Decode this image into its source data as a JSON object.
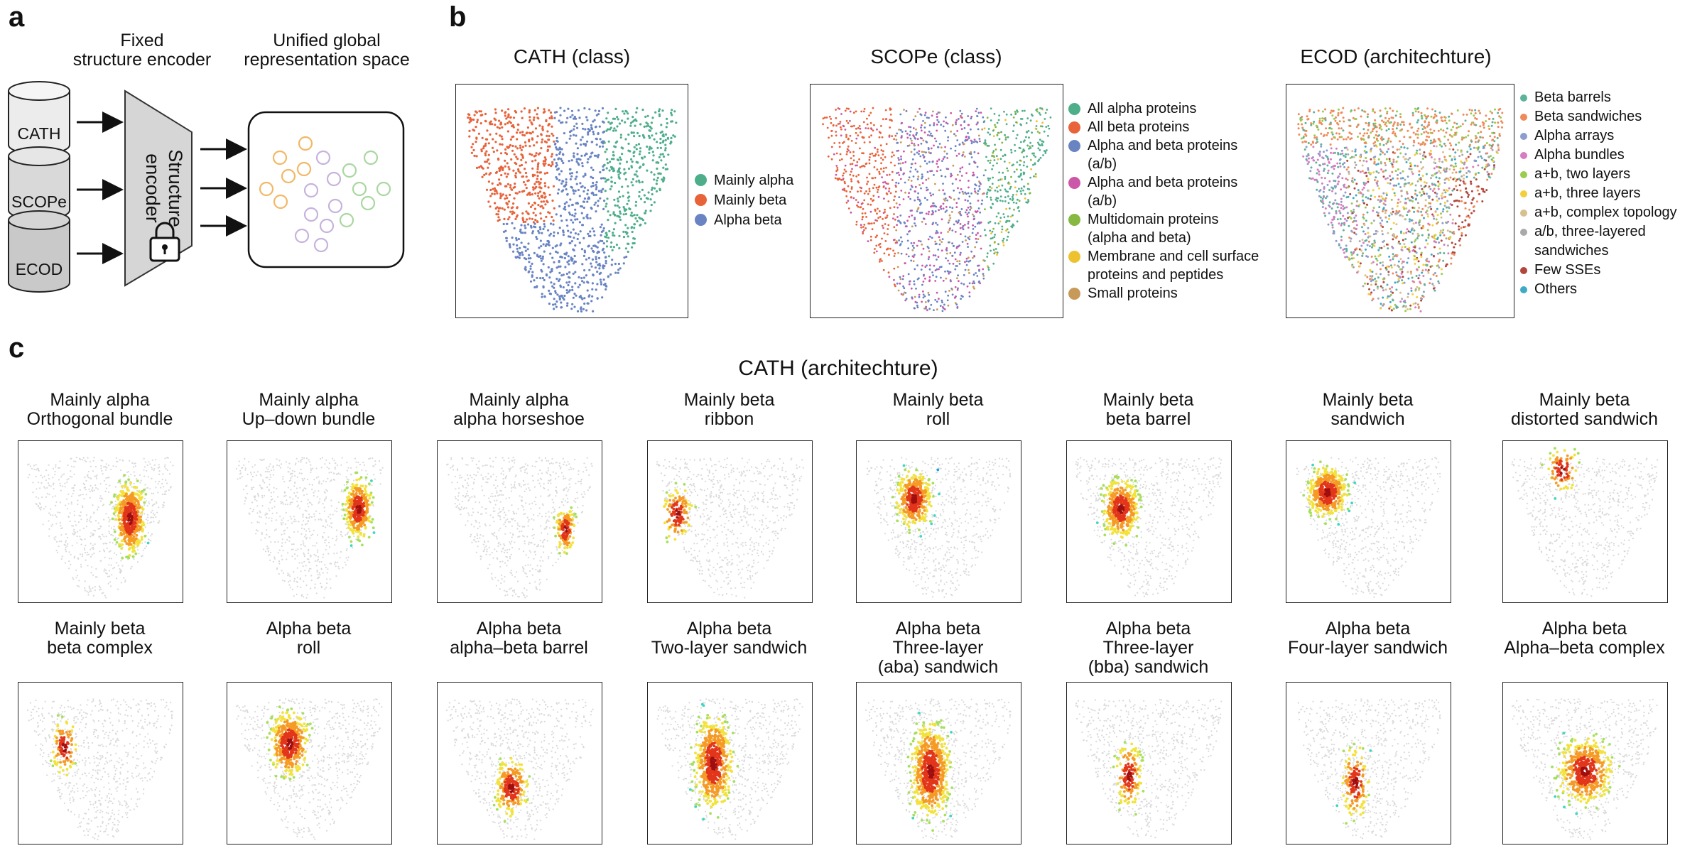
{
  "panel_a": {
    "letter": "a",
    "fixed_encoder_label": "Fixed\nstructure encoder",
    "representation_label": "Unified global\nrepresentation space",
    "databases": [
      "CATH",
      "SCOPe",
      "ECOD"
    ],
    "encoder_label": "Structure\nencoder",
    "lock_icon": "lock-icon",
    "circle_colors": {
      "orange": "#f2b866",
      "purple": "#c6b3dc",
      "green": "#a9d7a0"
    }
  },
  "panel_b": {
    "letter": "b",
    "charts": [
      {
        "title": "CATH (class)",
        "legend": [
          {
            "label": "Mainly alpha",
            "color": "#4fae8a"
          },
          {
            "label": "Mainly beta",
            "color": "#e8623a"
          },
          {
            "label": "Alpha beta",
            "color": "#6a84c3"
          }
        ]
      },
      {
        "title": "SCOPe (class)",
        "legend": [
          {
            "label": "All alpha proteins",
            "color": "#4fae8a"
          },
          {
            "label": "All beta proteins",
            "color": "#e8623a"
          },
          {
            "label": "Alpha and beta proteins\n(a/b)",
            "color": "#6a84c3"
          },
          {
            "label": "Alpha and beta proteins\n(a/b)",
            "color": "#cc56a8"
          },
          {
            "label": "Multidomain proteins\n(alpha and beta)",
            "color": "#86b842"
          },
          {
            "label": "Membrane and cell surface\nproteins and peptides",
            "color": "#eec12f"
          },
          {
            "label": "Small proteins",
            "color": "#c89a5a"
          }
        ]
      },
      {
        "title": "ECOD (architechture)",
        "legend": [
          {
            "label": "Beta barrels",
            "color": "#5cb39a"
          },
          {
            "label": "Beta sandwiches",
            "color": "#ef8a5a"
          },
          {
            "label": "Alpha arrays",
            "color": "#8d9dcc"
          },
          {
            "label": "Alpha bundles",
            "color": "#d77cbf"
          },
          {
            "label": "a+b, two layers",
            "color": "#9ccb4f"
          },
          {
            "label": "a+b, three layers",
            "color": "#f3cf3c"
          },
          {
            "label": "a+b, complex topology",
            "color": "#d7c08f"
          },
          {
            "label": "a/b, three-layered\nsandwiches",
            "color": "#a9a9a9"
          },
          {
            "label": "Few SSEs",
            "color": "#b0463c"
          },
          {
            "label": "Others",
            "color": "#3fa9c6"
          }
        ]
      }
    ]
  },
  "panel_c": {
    "letter": "c",
    "title": "CATH (architechture)",
    "plots": [
      {
        "label": "Mainly alpha\nOrthogonal bundle"
      },
      {
        "label": "Mainly alpha\nUp–down bundle"
      },
      {
        "label": "Mainly alpha\nalpha horseshoe"
      },
      {
        "label": "Mainly beta\nribbon"
      },
      {
        "label": "Mainly beta\nroll"
      },
      {
        "label": "Mainly beta\nbeta barrel"
      },
      {
        "label": "Mainly beta\nsandwich"
      },
      {
        "label": "Mainly beta\ndistorted sandwich"
      },
      {
        "label": "Mainly beta\nbeta complex"
      },
      {
        "label": "Alpha beta\nroll"
      },
      {
        "label": "Alpha beta\nalpha–beta barrel"
      },
      {
        "label": "Alpha beta\nTwo-layer sandwich"
      },
      {
        "label": "Alpha beta\nThree-layer\n(aba) sandwich"
      },
      {
        "label": "Alpha beta\nThree-layer\n(bba) sandwich"
      },
      {
        "label": "Alpha beta\nFour-layer sandwich"
      },
      {
        "label": "Alpha beta\nAlpha–beta complex"
      }
    ]
  }
}
